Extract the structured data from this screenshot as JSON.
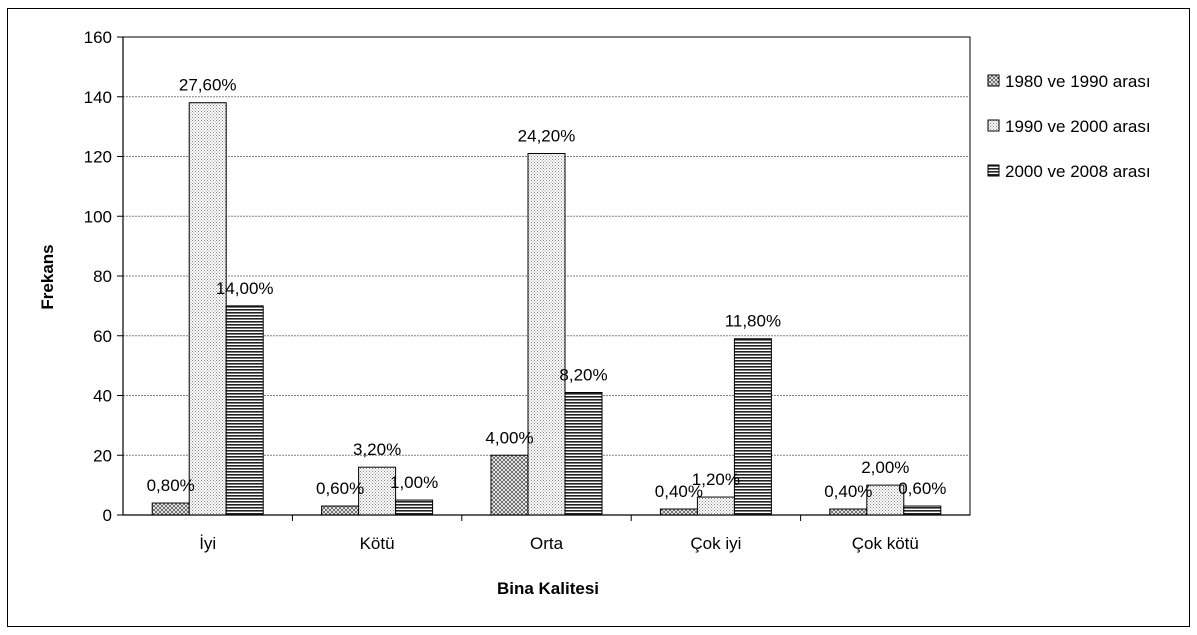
{
  "chart_data": {
    "type": "bar",
    "title": "",
    "xlabel": "Bina Kalitesi",
    "ylabel": "Frekans",
    "ylim": [
      0,
      160
    ],
    "yticks": [
      0,
      20,
      40,
      60,
      80,
      100,
      120,
      140,
      160
    ],
    "grid": true,
    "legend_position": "right",
    "categories": [
      "İyi",
      "Kötü",
      "Orta",
      "Çok iyi",
      "Çok kötü"
    ],
    "series": [
      {
        "name": "1980 ve 1990 arası",
        "pattern": "crosshatch",
        "values": [
          4,
          3,
          20,
          2,
          2
        ],
        "labels": [
          "0,80%",
          "0,60%",
          "4,00%",
          "0,40%",
          "0,40%"
        ]
      },
      {
        "name": "1990 ve 2000 arası",
        "pattern": "dots",
        "values": [
          138,
          16,
          121,
          6,
          10
        ],
        "labels": [
          "27,60%",
          "3,20%",
          "24,20%",
          "1,20%",
          "2,00%"
        ]
      },
      {
        "name": "2000 ve 2008 arası",
        "pattern": "horizontal-lines",
        "values": [
          70,
          5,
          41,
          59,
          3
        ],
        "labels": [
          "14,00%",
          "1,00%",
          "8,20%",
          "11,80%",
          "0,60%"
        ]
      }
    ]
  }
}
